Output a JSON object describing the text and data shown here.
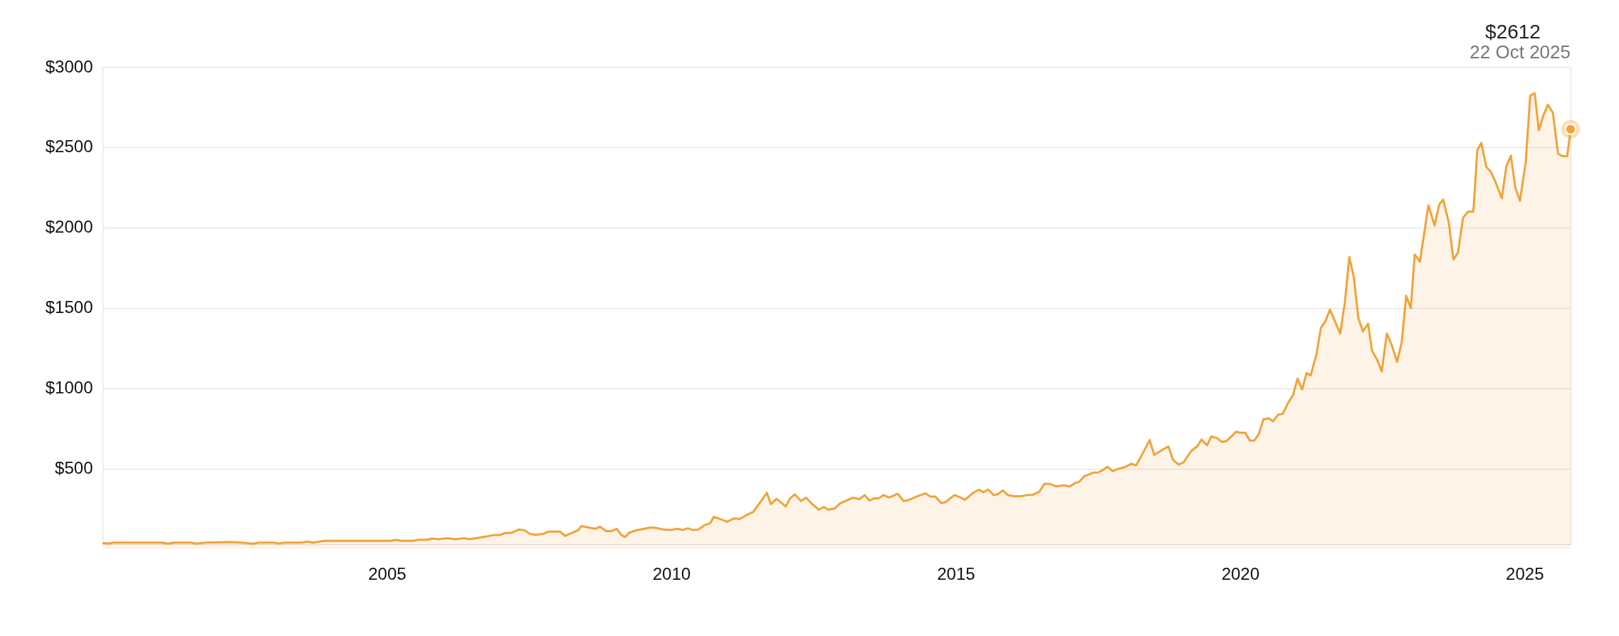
{
  "chart_data": {
    "type": "area",
    "x": [
      2000.0,
      2000.1,
      2000.2,
      2001.05,
      2001.15,
      2001.25,
      2001.55,
      2001.65,
      2001.8,
      2002.25,
      2002.45,
      2002.65,
      2002.75,
      2003.0,
      2003.1,
      2003.2,
      2003.5,
      2003.6,
      2003.7,
      2003.9,
      2005.07,
      2005.15,
      2005.25,
      2005.45,
      2005.55,
      2005.7,
      2005.8,
      2005.9,
      2006.07,
      2006.2,
      2006.35,
      2006.45,
      2006.7,
      2006.9,
      2007.0,
      2007.07,
      2007.2,
      2007.32,
      2007.42,
      2007.51,
      2007.61,
      2007.75,
      2007.84,
      2008.04,
      2008.13,
      2008.28,
      2008.37,
      2008.42,
      2008.56,
      2008.66,
      2008.75,
      2008.85,
      2008.95,
      2009.04,
      2009.12,
      2009.19,
      2009.26,
      2009.38,
      2009.62,
      2009.71,
      2009.86,
      2010.0,
      2010.1,
      2010.2,
      2010.29,
      2010.38,
      2010.48,
      2010.59,
      2010.68,
      2010.75,
      2010.91,
      2010.98,
      2011.1,
      2011.2,
      2011.34,
      2011.44,
      2011.56,
      2011.68,
      2011.75,
      2011.85,
      2012.01,
      2012.09,
      2012.17,
      2012.28,
      2012.37,
      2012.44,
      2012.59,
      2012.68,
      2012.76,
      2012.87,
      2012.97,
      2013.08,
      2013.19,
      2013.31,
      2013.4,
      2013.48,
      2013.57,
      2013.65,
      2013.73,
      2013.83,
      2013.98,
      2014.08,
      2014.15,
      2014.33,
      2014.47,
      2014.55,
      2014.64,
      2014.75,
      2014.82,
      2014.98,
      2015.08,
      2015.16,
      2015.31,
      2015.41,
      2015.49,
      2015.57,
      2015.67,
      2015.75,
      2015.83,
      2015.92,
      2016.03,
      2016.16,
      2016.25,
      2016.36,
      2016.47,
      2016.56,
      2016.67,
      2016.76,
      2016.9,
      2017.01,
      2017.1,
      2017.17,
      2017.26,
      2017.33,
      2017.42,
      2017.5,
      2017.58,
      2017.67,
      2017.76,
      2017.84,
      2017.98,
      2018.09,
      2018.17,
      2018.24,
      2018.41,
      2018.49,
      2018.64,
      2018.74,
      2018.82,
      2018.92,
      2019.01,
      2019.14,
      2019.25,
      2019.32,
      2019.42,
      2019.49,
      2019.59,
      2019.68,
      2019.76,
      2019.84,
      2019.93,
      2020.0,
      2020.09,
      2020.17,
      2020.25,
      2020.33,
      2020.41,
      2020.51,
      2020.58,
      2020.67,
      2020.75,
      2020.84,
      2020.93,
      2021.01,
      2021.09,
      2021.17,
      2021.24,
      2021.34,
      2021.42,
      2021.5,
      2021.58,
      2021.76,
      2021.84,
      2021.92,
      2022.0,
      2022.08,
      2022.16,
      2022.25,
      2022.32,
      2022.41,
      2022.49,
      2022.58,
      2022.67,
      2022.76,
      2022.84,
      2022.92,
      2023.0,
      2023.07,
      2023.16,
      2023.24,
      2023.31,
      2023.42,
      2023.5,
      2023.57,
      2023.67,
      2023.75,
      2023.83,
      2023.92,
      2024.01,
      2024.1,
      2024.17,
      2024.24,
      2024.33,
      2024.41,
      2024.5,
      2024.6,
      2024.68,
      2024.76,
      2024.84,
      2024.92,
      2025.02,
      2025.1,
      2025.18,
      2025.25,
      2025.33,
      2025.41,
      2025.5,
      2025.59,
      2025.67,
      2025.75,
      2025.81
    ],
    "series": [
      {
        "color": "#f0a33a",
        "values": [
          38,
          34,
          40,
          40,
          33,
          40,
          40,
          33,
          40,
          43,
          40,
          33,
          40,
          40,
          34,
          40,
          40,
          47,
          40,
          51,
          51,
          58,
          51,
          51,
          58,
          58,
          65,
          61,
          68,
          61,
          68,
          61,
          75,
          88,
          88,
          99,
          102,
          122,
          116,
          95,
          88,
          95,
          109,
          109,
          82,
          105,
          119,
          143,
          133,
          126,
          139,
          112,
          112,
          126,
          88,
          75,
          102,
          116,
          133,
          133,
          122,
          119,
          126,
          119,
          129,
          119,
          122,
          150,
          160,
          201,
          180,
          170,
          190,
          187,
          214,
          231,
          289,
          350,
          279,
          313,
          265,
          316,
          340,
          299,
          320,
          292,
          245,
          262,
          245,
          252,
          285,
          302,
          319,
          311,
          336,
          302,
          316,
          316,
          336,
          321,
          344,
          300,
          302,
          329,
          347,
          327,
          327,
          285,
          292,
          336,
          322,
          306,
          351,
          369,
          354,
          371,
          335,
          343,
          365,
          335,
          329,
          329,
          336,
          338,
          357,
          406,
          404,
          390,
          396,
          390,
          412,
          418,
          453,
          462,
          476,
          476,
          490,
          512,
          484,
          497,
          511,
          531,
          520,
          563,
          678,
          585,
          619,
          638,
          555,
          525,
          541,
          610,
          641,
          681,
          646,
          700,
          691,
          666,
          672,
          698,
          730,
          724,
          724,
          675,
          675,
          717,
          807,
          813,
          794,
          836,
          842,
          907,
          957,
          1061,
          992,
          1096,
          1080,
          1209,
          1375,
          1418,
          1490,
          1341,
          1531,
          1817,
          1691,
          1434,
          1354,
          1402,
          1233,
          1177,
          1105,
          1341,
          1265,
          1164,
          1286,
          1576,
          1498,
          1833,
          1788,
          1973,
          2138,
          2013,
          2145,
          2174,
          2029,
          1801,
          1844,
          2062,
          2099,
          2099,
          2482,
          2527,
          2376,
          2347,
          2275,
          2183,
          2380,
          2448,
          2246,
          2167,
          2403,
          2820,
          2836,
          2606,
          2696,
          2764,
          2714,
          2460,
          2444,
          2444,
          2612
        ]
      }
    ],
    "xlim": [
      2000.0,
      2025.81
    ],
    "xticks": [
      2005,
      2010,
      2015,
      2020,
      2025
    ],
    "ylim": [
      30,
      3000
    ],
    "yticks": [
      {
        "value": 500,
        "label": "$500"
      },
      {
        "value": 1000,
        "label": "$1000"
      },
      {
        "value": 1500,
        "label": "$1500"
      },
      {
        "value": 2000,
        "label": "$2000"
      },
      {
        "value": 2500,
        "label": "$2500"
      },
      {
        "value": 3000,
        "label": "$3000"
      }
    ],
    "grid": "y",
    "annotations": [
      "$2612",
      "22 Oct 2025"
    ]
  }
}
